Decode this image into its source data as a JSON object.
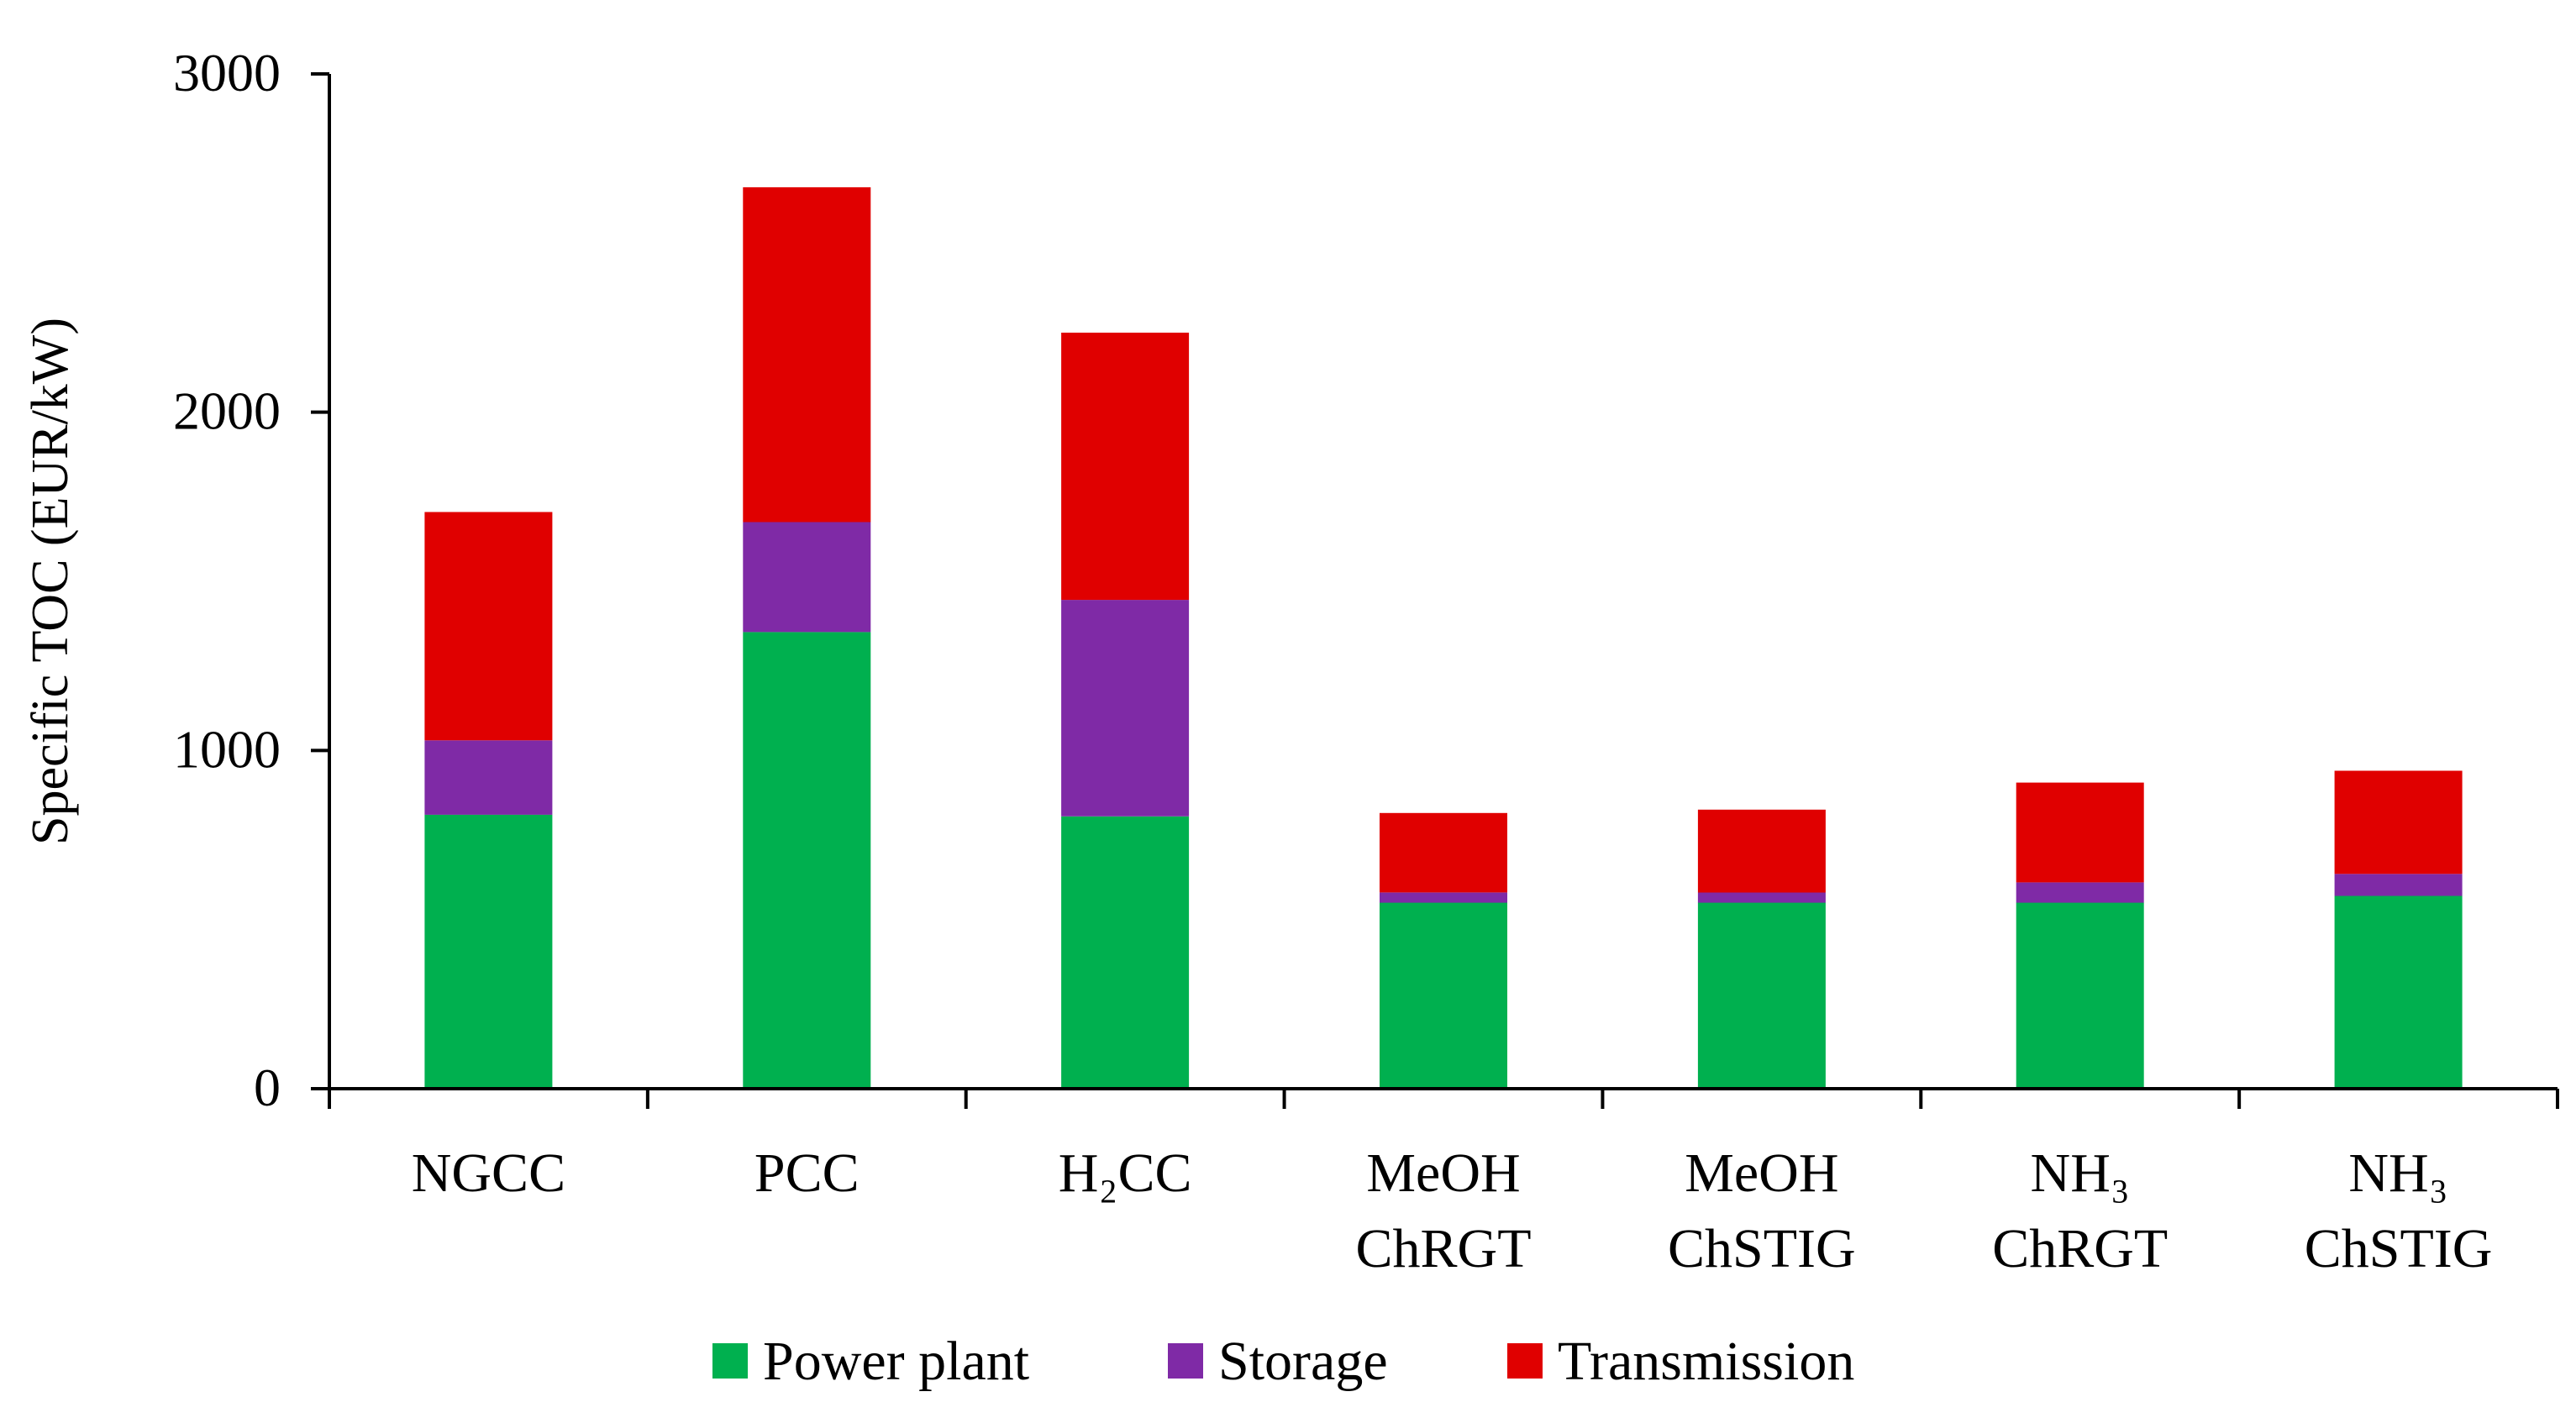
{
  "chart_data": {
    "type": "bar",
    "stacked": true,
    "title": "",
    "xlabel": "",
    "ylabel": "Specific TOC (EUR/kW)",
    "ylim": [
      0,
      3000
    ],
    "yticks": [
      "0",
      "1000",
      "2000",
      "3000"
    ],
    "grid": false,
    "legend_position": "bottom-center",
    "categories": [
      [
        "NGCC"
      ],
      [
        "PCC"
      ],
      [
        "H₂CC"
      ],
      [
        "MeOH",
        "ChRGT"
      ],
      [
        "MeOH",
        "ChSTIG"
      ],
      [
        "NH₃",
        "ChRGT"
      ],
      [
        "NH₃",
        "ChSTIG"
      ]
    ],
    "series": [
      {
        "name": "Power plant",
        "color": "#00b04f",
        "values": [
          810,
          1350,
          805,
          550,
          550,
          550,
          570
        ]
      },
      {
        "name": "Storage",
        "color": "#7f2aa6",
        "values": [
          220,
          325,
          640,
          30,
          30,
          60,
          65
        ]
      },
      {
        "name": "Transmission",
        "color": "#e00000",
        "values": [
          675,
          990,
          790,
          235,
          245,
          295,
          305
        ]
      }
    ]
  }
}
